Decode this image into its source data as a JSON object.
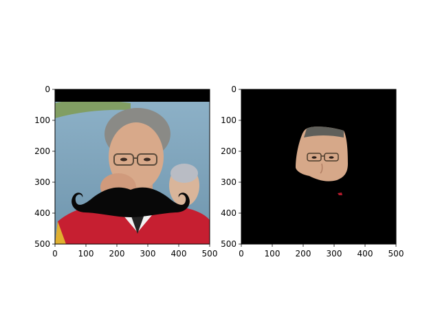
{
  "chart_data": [
    {
      "type": "image",
      "title": "",
      "xlabel": "",
      "ylabel": "",
      "xlim": [
        0,
        500
      ],
      "ylim": [
        500,
        0
      ],
      "xticks": [
        0,
        100,
        200,
        300,
        400,
        500
      ],
      "yticks": [
        0,
        100,
        200,
        300,
        400,
        500
      ],
      "xtick_labels": [
        "0",
        "100",
        "200",
        "300",
        "400",
        "500"
      ],
      "ytick_labels": [
        "0",
        "100",
        "200",
        "300",
        "400",
        "500"
      ],
      "grid": false,
      "content": "photo of a man in glasses with a black cartoon mustache overlaid; black letterbox band along top"
    },
    {
      "type": "image",
      "title": "",
      "xlabel": "",
      "ylabel": "",
      "xlim": [
        0,
        500
      ],
      "ylim": [
        500,
        0
      ],
      "xticks": [
        0,
        100,
        200,
        300,
        400,
        500
      ],
      "yticks": [
        0,
        100,
        200,
        300,
        400,
        500
      ],
      "xtick_labels": [
        "0",
        "100",
        "200",
        "300",
        "400",
        "500"
      ],
      "ytick_labels": [
        "0",
        "100",
        "200",
        "300",
        "400",
        "500"
      ],
      "grid": false,
      "content": "face region segmented on black background"
    }
  ]
}
